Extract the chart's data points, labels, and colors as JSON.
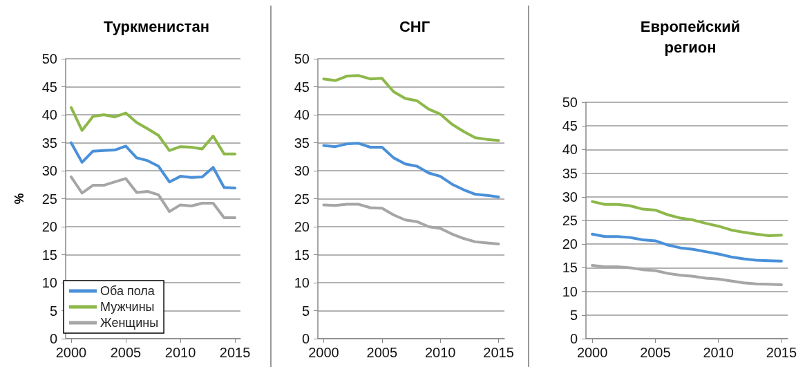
{
  "chart_data": [
    {
      "type": "line",
      "title": "Туркменистан",
      "ylabel": "%",
      "x": [
        2000,
        2001,
        2002,
        2003,
        2004,
        2005,
        2006,
        2007,
        2008,
        2009,
        2010,
        2011,
        2012,
        2013,
        2014,
        2015
      ],
      "xlim": [
        1999.5,
        2015.5
      ],
      "xticks": [
        2000,
        2005,
        2010,
        2015
      ],
      "ylim": [
        0,
        50
      ],
      "yticks": [
        0,
        5,
        10,
        15,
        20,
        25,
        30,
        35,
        40,
        45,
        50
      ],
      "grid": "y",
      "legend": "bottom left",
      "marker": "none",
      "line_style": "solid",
      "series": [
        {
          "name": "Оба пола",
          "color": "#4a90d9",
          "values": [
            35,
            31.5,
            33.5,
            33.6,
            33.7,
            34.4,
            32.3,
            31.8,
            30.8,
            28,
            29,
            28.8,
            28.9,
            30.6,
            27,
            26.9
          ]
        },
        {
          "name": "Мужчины",
          "color": "#8db84a",
          "values": [
            41.3,
            37.2,
            39.7,
            40,
            39.6,
            40.3,
            38.6,
            37.5,
            36.3,
            33.6,
            34.3,
            34.2,
            33.9,
            36.2,
            33,
            33
          ]
        },
        {
          "name": "Женщины",
          "color": "#a6a6a6",
          "values": [
            28.9,
            26,
            27.4,
            27.4,
            28,
            28.6,
            26.1,
            26.3,
            25.7,
            22.7,
            23.9,
            23.7,
            24.2,
            24.2,
            21.6,
            21.6
          ]
        }
      ]
    },
    {
      "type": "line",
      "title": "СНГ",
      "x": [
        2000,
        2001,
        2002,
        2003,
        2004,
        2005,
        2006,
        2007,
        2008,
        2009,
        2010,
        2011,
        2012,
        2013,
        2014,
        2015
      ],
      "xlim": [
        1999.5,
        2015.5
      ],
      "xticks": [
        2000,
        2005,
        2010,
        2015
      ],
      "ylim": [
        0,
        50
      ],
      "yticks": [
        0,
        5,
        10,
        15,
        20,
        25,
        30,
        35,
        40,
        45,
        50
      ],
      "grid": "y",
      "marker": "none",
      "line_style": "solid",
      "series": [
        {
          "color": "#4a90d9",
          "values": [
            34.5,
            34.3,
            34.8,
            34.9,
            34.2,
            34.2,
            32.3,
            31.2,
            30.8,
            29.6,
            29,
            27.6,
            26.6,
            25.8,
            25.6,
            25.3
          ]
        },
        {
          "color": "#8db84a",
          "values": [
            46.4,
            46.1,
            46.9,
            47,
            46.4,
            46.5,
            44.1,
            42.9,
            42.5,
            41,
            40.1,
            38.3,
            37,
            35.9,
            35.6,
            35.4
          ]
        },
        {
          "color": "#a6a6a6",
          "values": [
            23.9,
            23.8,
            24,
            24,
            23.4,
            23.3,
            22.1,
            21.2,
            20.9,
            20,
            19.7,
            18.7,
            17.9,
            17.3,
            17.1,
            16.9
          ]
        }
      ]
    },
    {
      "type": "line",
      "title": "Европейский регион",
      "x": [
        2000,
        2001,
        2002,
        2003,
        2004,
        2005,
        2006,
        2007,
        2008,
        2009,
        2010,
        2011,
        2012,
        2013,
        2014,
        2015
      ],
      "xlim": [
        1999.5,
        2015.5
      ],
      "xticks": [
        2000,
        2005,
        2010,
        2015
      ],
      "ylim": [
        0,
        50
      ],
      "yticks": [
        0,
        5,
        10,
        15,
        20,
        25,
        30,
        35,
        40,
        45,
        50
      ],
      "grid": "y",
      "marker": "none",
      "line_style": "solid",
      "series": [
        {
          "color": "#4a90d9",
          "values": [
            22.1,
            21.6,
            21.6,
            21.4,
            20.9,
            20.7,
            19.8,
            19.2,
            18.9,
            18.4,
            17.9,
            17.3,
            16.9,
            16.6,
            16.5,
            16.4
          ]
        },
        {
          "color": "#8db84a",
          "values": [
            29,
            28.4,
            28.4,
            28.1,
            27.4,
            27.2,
            26.2,
            25.5,
            25.1,
            24.4,
            23.8,
            23,
            22.5,
            22.1,
            21.8,
            21.9
          ]
        },
        {
          "color": "#a6a6a6",
          "values": [
            15.5,
            15.2,
            15.2,
            15,
            14.6,
            14.4,
            13.8,
            13.4,
            13.2,
            12.8,
            12.6,
            12.2,
            11.8,
            11.6,
            11.5,
            11.4
          ]
        }
      ]
    }
  ]
}
